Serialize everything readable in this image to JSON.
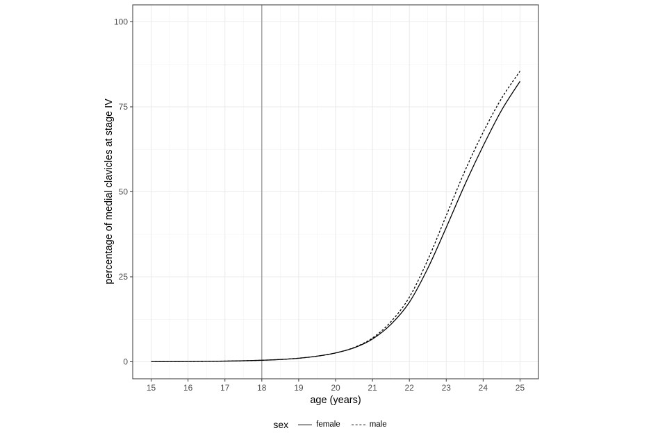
{
  "chart_data": {
    "type": "line",
    "xlabel": "age (years)",
    "ylabel": "percentage of medial clavicles at stage IV",
    "xlim": [
      14.5,
      25.5
    ],
    "ylim": [
      -5,
      105
    ],
    "x_ticks": [
      15,
      16,
      17,
      18,
      19,
      20,
      21,
      22,
      23,
      24,
      25
    ],
    "y_ticks": [
      0,
      25,
      50,
      75,
      100
    ],
    "grid": true,
    "vline": 18,
    "legend": {
      "title": "sex",
      "position": "bottom"
    },
    "x": [
      15,
      15.5,
      16,
      16.5,
      17,
      17.5,
      18,
      18.5,
      19,
      19.5,
      20,
      20.5,
      21,
      21.5,
      22,
      22.5,
      23,
      23.5,
      24,
      24.5,
      25
    ],
    "series": [
      {
        "name": "female",
        "linestyle": "solid",
        "values": [
          0.03,
          0.05,
          0.08,
          0.13,
          0.2,
          0.3,
          0.45,
          0.68,
          1.05,
          1.65,
          2.6,
          4.1,
          6.7,
          11.0,
          17.5,
          27.5,
          39.5,
          52.0,
          63.5,
          74.0,
          82.5
        ]
      },
      {
        "name": "male",
        "linestyle": "dashed",
        "values": [
          0.03,
          0.05,
          0.08,
          0.13,
          0.2,
          0.3,
          0.45,
          0.68,
          1.05,
          1.65,
          2.6,
          4.2,
          7.0,
          11.8,
          19.0,
          30.0,
          43.0,
          56.0,
          67.5,
          77.5,
          85.5
        ]
      }
    ]
  }
}
